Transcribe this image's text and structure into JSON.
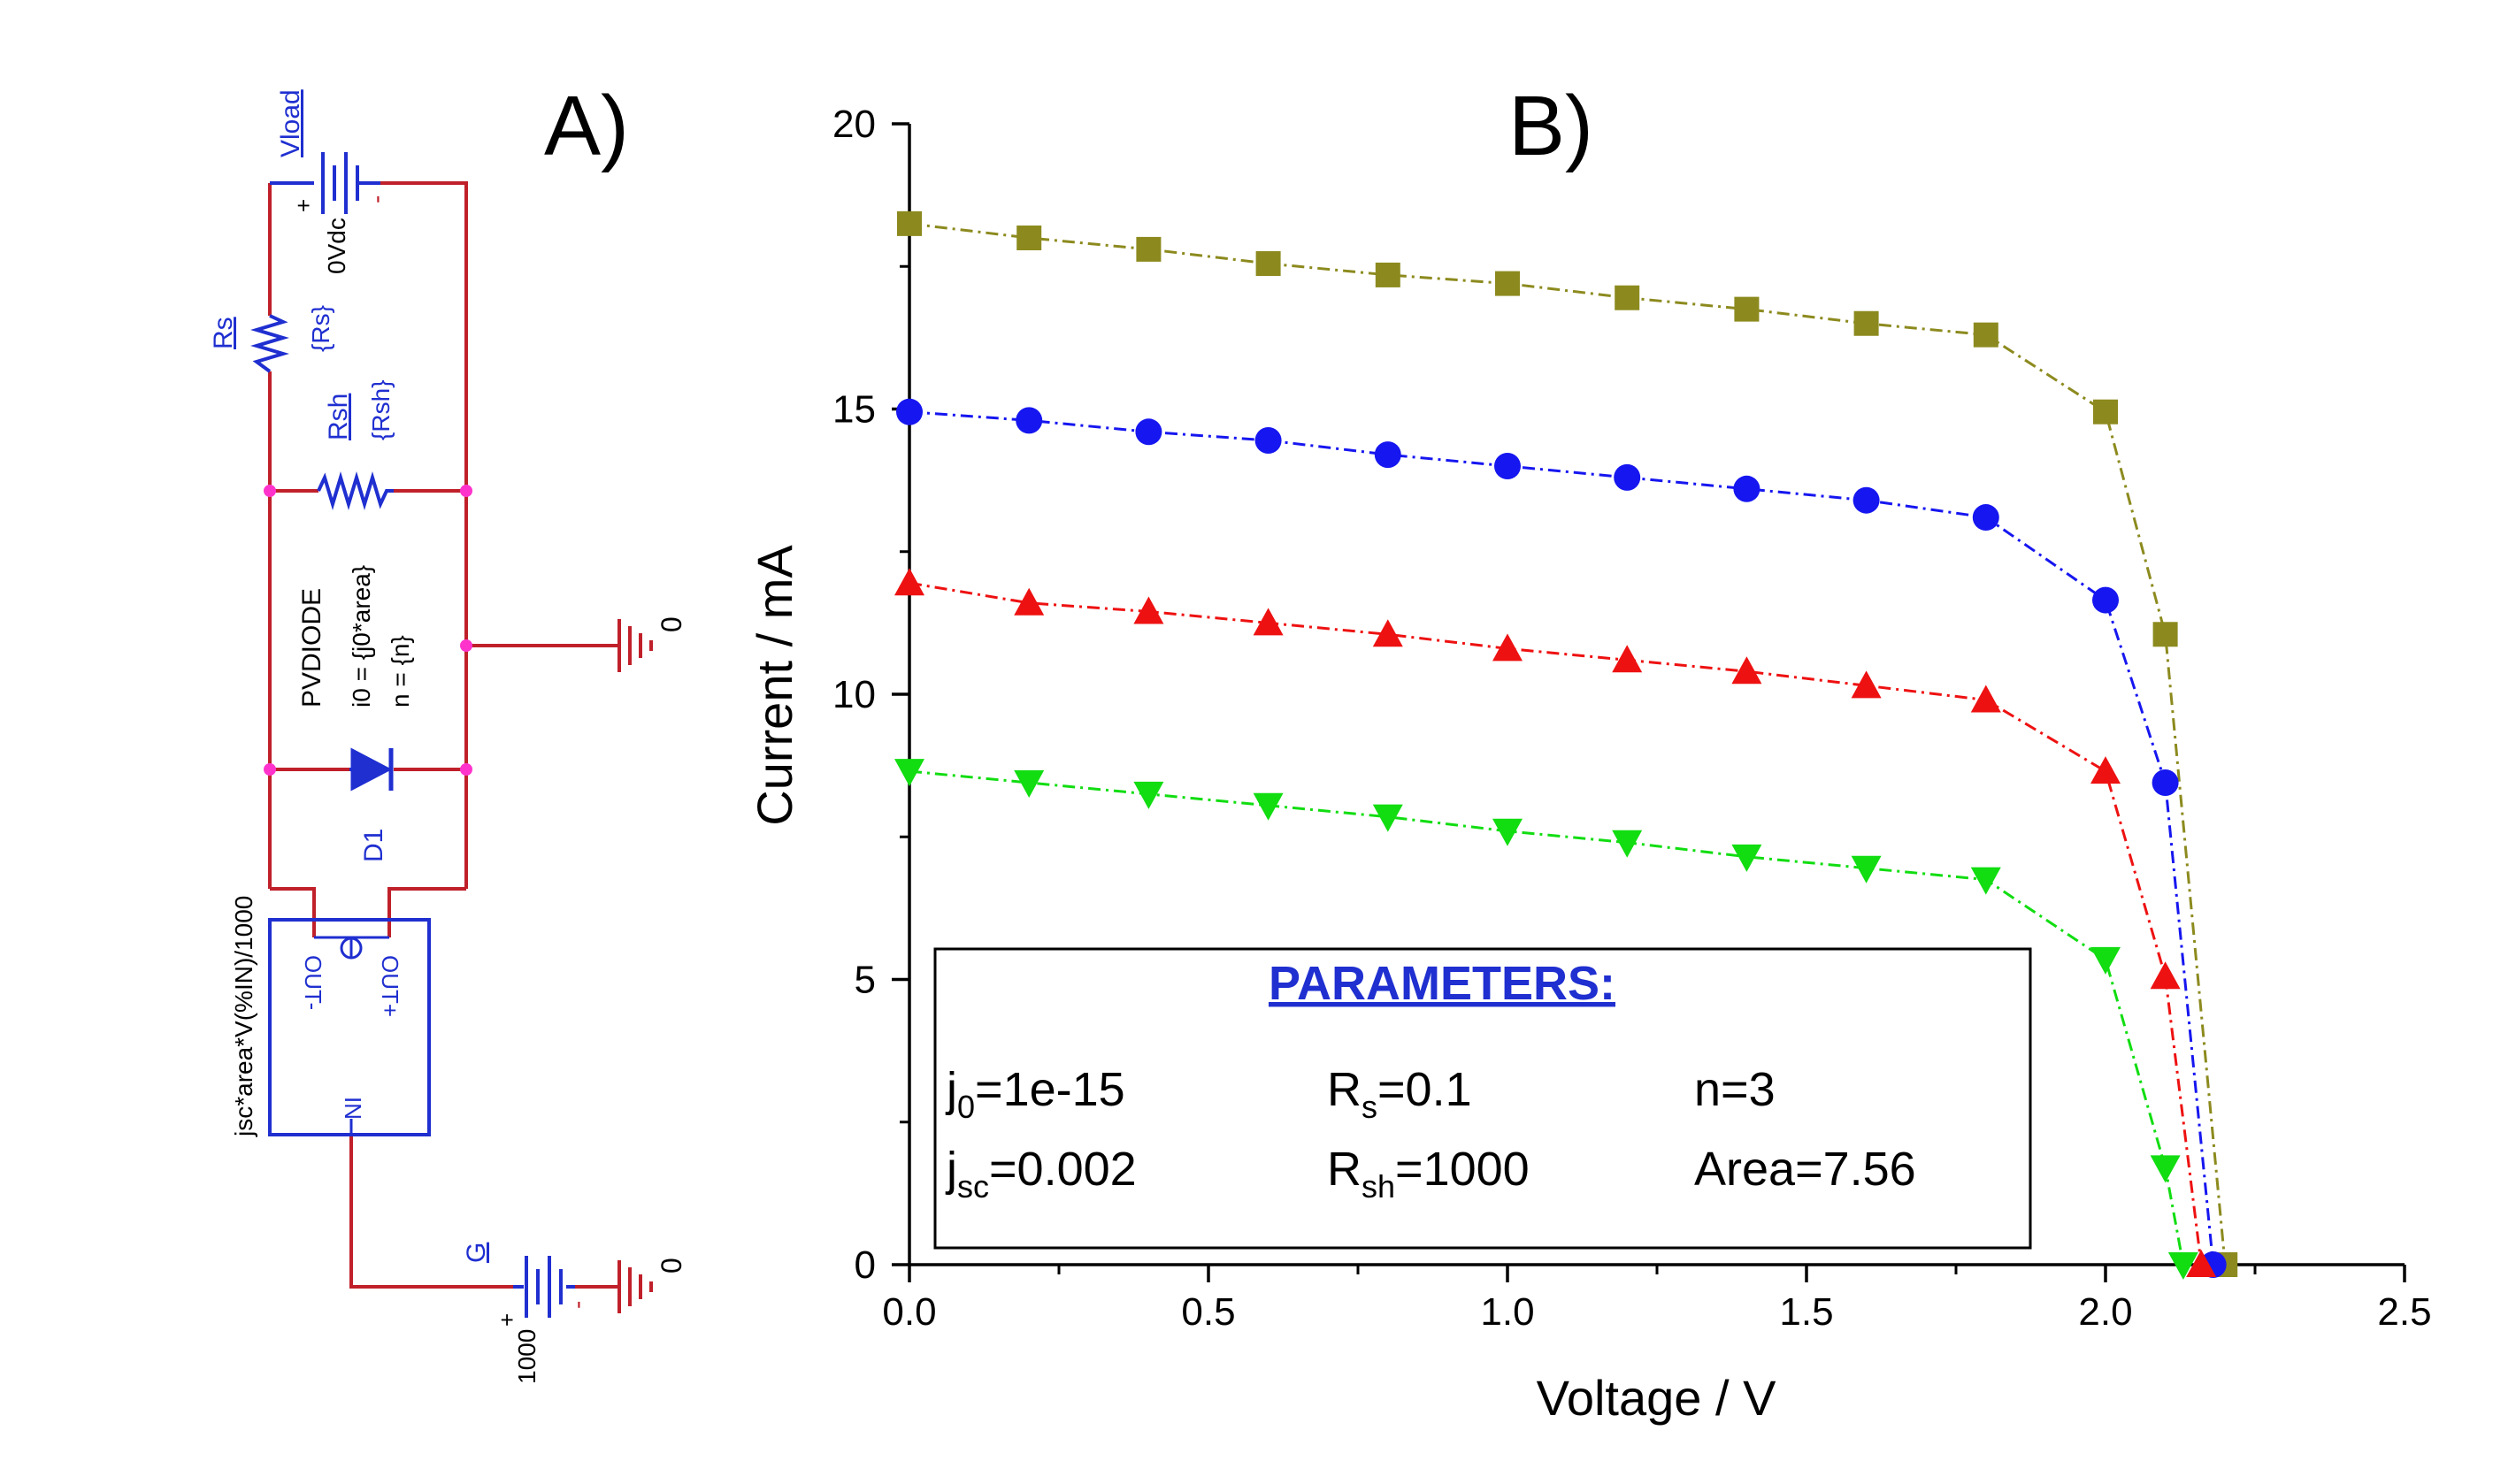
{
  "panels": {
    "a_label": "A)",
    "b_label": "B)"
  },
  "schematic": {
    "vload_label": "Vload",
    "vload_value": "0Vdc",
    "plus": "+",
    "minus": "-",
    "rs_label": "Rs",
    "rs_value": "{Rs}",
    "rsh_label": "Rsh",
    "rsh_value": "{Rsh}",
    "pvdiode_line1": "PVDIODE",
    "pvdiode_line2": "i0 = {j0*area}",
    "pvdiode_line3": "n = {n}",
    "d1_label": "D1",
    "ground_value": "0",
    "source_expr": "jsc*area*V(%IN)/1000",
    "source_out_minus": "OUT-",
    "source_out_plus": "OUT+",
    "source_in": "IN",
    "g_label": "G",
    "g_value": "1000",
    "colors": {
      "component": "#1f2fd0",
      "wire": "#c0202a",
      "node": "#ff33cc"
    }
  },
  "chart_data": {
    "type": "scatter",
    "xlabel": "Voltage / V",
    "ylabel": "Current / mA",
    "xlim": [
      0,
      2.5
    ],
    "ylim": [
      0,
      20
    ],
    "xticks": [
      "0.0",
      "0.5",
      "1.0",
      "1.5",
      "2.0",
      "2.5"
    ],
    "yticks": [
      "0",
      "5",
      "10",
      "15",
      "20"
    ],
    "grid": false,
    "series": [
      {
        "marker": "square",
        "color": "#8c8a1e",
        "x": [
          0,
          0.2,
          0.4,
          0.6,
          0.8,
          1.0,
          1.2,
          1.4,
          1.6,
          1.8,
          2.0,
          2.1,
          2.2
        ],
        "y": [
          18.25,
          18.0,
          17.8,
          17.55,
          17.35,
          17.2,
          16.95,
          16.75,
          16.5,
          16.3,
          14.95,
          11.05,
          0
        ]
      },
      {
        "marker": "circle",
        "color": "#1616f0",
        "x": [
          0,
          0.2,
          0.4,
          0.6,
          0.8,
          1.0,
          1.2,
          1.4,
          1.6,
          1.8,
          2.0,
          2.1,
          2.18
        ],
        "y": [
          14.95,
          14.8,
          14.6,
          14.45,
          14.2,
          14.0,
          13.8,
          13.6,
          13.4,
          13.1,
          11.65,
          8.45,
          0
        ]
      },
      {
        "marker": "triangle-up",
        "color": "#ee1111",
        "x": [
          0,
          0.2,
          0.4,
          0.6,
          0.8,
          1.0,
          1.2,
          1.4,
          1.6,
          1.8,
          2.0,
          2.1,
          2.16
        ],
        "y": [
          11.95,
          11.6,
          11.45,
          11.25,
          11.05,
          10.8,
          10.6,
          10.4,
          10.15,
          9.9,
          8.65,
          5.05,
          0
        ]
      },
      {
        "marker": "triangle-down",
        "color": "#11dd11",
        "x": [
          0,
          0.2,
          0.4,
          0.6,
          0.8,
          1.0,
          1.2,
          1.4,
          1.6,
          1.8,
          2.0,
          2.1,
          2.13
        ],
        "y": [
          8.65,
          8.45,
          8.25,
          8.05,
          7.85,
          7.6,
          7.4,
          7.15,
          6.95,
          6.75,
          5.35,
          1.7,
          0
        ]
      }
    ],
    "parameters_box": {
      "title": "PARAMETERS:",
      "rows": [
        [
          {
            "base": "j",
            "sub": "0",
            "rest": "=1e-15"
          },
          {
            "base": "R",
            "sub": "s",
            "rest": "=0.1"
          },
          {
            "base": "n=3",
            "sub": "",
            "rest": ""
          }
        ],
        [
          {
            "base": "j",
            "sub": "sc",
            "rest": "=0.002"
          },
          {
            "base": "R",
            "sub": "sh",
            "rest": "=1000"
          },
          {
            "base": "Area=7.56",
            "sub": "",
            "rest": ""
          }
        ]
      ]
    }
  }
}
